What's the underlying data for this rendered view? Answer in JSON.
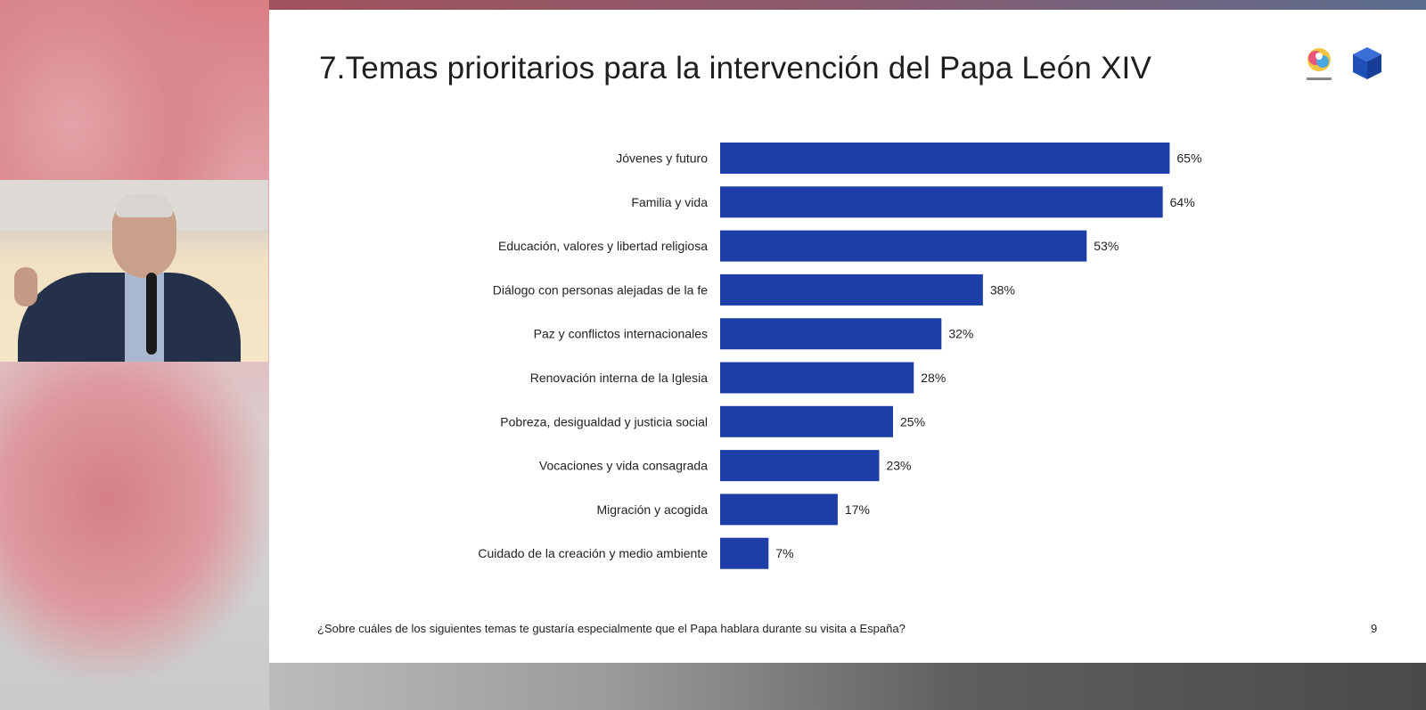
{
  "slide": {
    "title": "7.Temas prioritarios para la intervención del Papa León XIV",
    "question": "¿Sobre cuáles de los siguientes temas te gustaría especialmente que el Papa hablara durante su visita a España?",
    "page_number": "9"
  },
  "chart_data": {
    "type": "bar",
    "orientation": "horizontal",
    "categories": [
      "Jóvenes y futuro",
      "Familia y vida",
      "Educación, valores y libertad religiosa",
      "Diálogo con personas alejadas de la fe",
      "Paz y conflictos internacionales",
      "Renovación interna de la Iglesia",
      "Pobreza, desigualdad y justicia social",
      "Vocaciones y vida consagrada",
      "Migración y acogida",
      "Cuidado de la creación y medio ambiente"
    ],
    "values": [
      65,
      64,
      53,
      38,
      32,
      28,
      25,
      23,
      17,
      7
    ],
    "value_labels": [
      "65%",
      "64%",
      "53%",
      "38%",
      "32%",
      "28%",
      "25%",
      "23%",
      "17%",
      "7%"
    ],
    "bar_color": "#1f3fa8",
    "xlim": [
      0,
      100
    ]
  }
}
